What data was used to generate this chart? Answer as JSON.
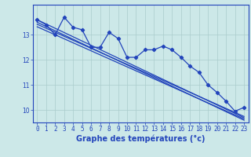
{
  "x": [
    0,
    1,
    2,
    3,
    4,
    5,
    6,
    7,
    8,
    9,
    10,
    11,
    12,
    13,
    14,
    15,
    16,
    17,
    18,
    19,
    20,
    21,
    22,
    23
  ],
  "temp": [
    13.6,
    13.4,
    13.0,
    13.7,
    13.3,
    13.2,
    12.5,
    12.5,
    13.1,
    12.85,
    12.1,
    12.1,
    12.4,
    12.4,
    12.55,
    12.4,
    12.1,
    11.75,
    11.5,
    11.0,
    10.7,
    10.35,
    9.95,
    10.1
  ],
  "reg_upper": [
    13.6,
    13.43,
    13.26,
    13.09,
    12.92,
    12.75,
    12.58,
    12.41,
    12.24,
    12.07,
    11.9,
    11.73,
    11.56,
    11.39,
    11.22,
    11.05,
    10.88,
    10.71,
    10.54,
    10.37,
    10.2,
    10.03,
    9.86,
    9.69
  ],
  "reg_mid1": [
    13.5,
    13.33,
    13.16,
    12.99,
    12.82,
    12.65,
    12.48,
    12.31,
    12.14,
    11.97,
    11.8,
    11.63,
    11.46,
    11.29,
    11.12,
    10.95,
    10.78,
    10.61,
    10.44,
    10.27,
    10.1,
    9.93,
    9.76,
    9.59
  ],
  "reg_mid2": [
    13.42,
    13.26,
    13.1,
    12.94,
    12.78,
    12.62,
    12.46,
    12.3,
    12.14,
    11.98,
    11.82,
    11.66,
    11.5,
    11.34,
    11.18,
    11.02,
    10.86,
    10.7,
    10.54,
    10.38,
    10.22,
    10.06,
    9.9,
    9.74
  ],
  "reg_lower": [
    13.32,
    13.16,
    13.0,
    12.84,
    12.68,
    12.52,
    12.36,
    12.2,
    12.04,
    11.88,
    11.72,
    11.56,
    11.4,
    11.24,
    11.08,
    10.92,
    10.76,
    10.6,
    10.44,
    10.28,
    10.12,
    9.96,
    9.8,
    9.64
  ],
  "ylim": [
    9.5,
    14.2
  ],
  "yticks": [
    10,
    11,
    12,
    13
  ],
  "xticks": [
    0,
    1,
    2,
    3,
    4,
    5,
    6,
    7,
    8,
    9,
    10,
    11,
    12,
    13,
    14,
    15,
    16,
    17,
    18,
    19,
    20,
    21,
    22,
    23
  ],
  "xlabel": "Graphe des températures (°c)",
  "bg_color": "#cce8e8",
  "line_color": "#2244bb",
  "grid_color": "#aacccc",
  "axis_color": "#2244bb",
  "tick_fontsize": 5.5,
  "label_fontsize": 7.0
}
